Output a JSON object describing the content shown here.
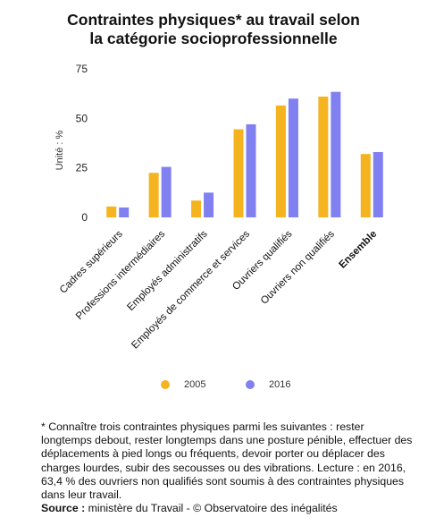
{
  "chart_data": {
    "type": "bar",
    "title_lines": [
      "Contraintes physiques* au travail selon",
      "la catégorie socioprofessionnelle"
    ],
    "ylabel": "Unité : %",
    "ylim": [
      0,
      75
    ],
    "yticks": [
      0,
      25,
      50,
      75
    ],
    "grid": false,
    "legend_position": "bottom",
    "categories": [
      "Cadres supérieurs",
      "Professions intermédiaires",
      "Employés administratifs",
      "Employés de commerce et services",
      "Ouvriers qualifiés",
      "Ouvriers non qualifiés",
      "Ensemble"
    ],
    "bold_categories": [
      "Ensemble"
    ],
    "series": [
      {
        "name": "2005",
        "color": "#f5b320",
        "values": [
          5.5,
          22.5,
          8.5,
          44.5,
          56.5,
          61,
          32
        ]
      },
      {
        "name": "2016",
        "color": "#8080f0",
        "values": [
          5,
          25.5,
          12.5,
          47,
          60,
          63.4,
          33
        ]
      }
    ]
  },
  "footnote": {
    "text": "* Connaître trois contraintes physiques parmi les suivantes : rester longtemps debout, rester longtemps dans une posture pénible, effectuer des déplacements à pied longs ou fréquents, devoir porter ou déplacer des charges lourdes, subir des secousses ou des vibrations. Lecture : en 2016, 63,4 % des ouvriers non qualifiés sont soumis à des contraintes physiques dans leur travail.",
    "source_label": "Source :",
    "source_text": " ministère du Travail - © Observatoire des inégalités"
  }
}
